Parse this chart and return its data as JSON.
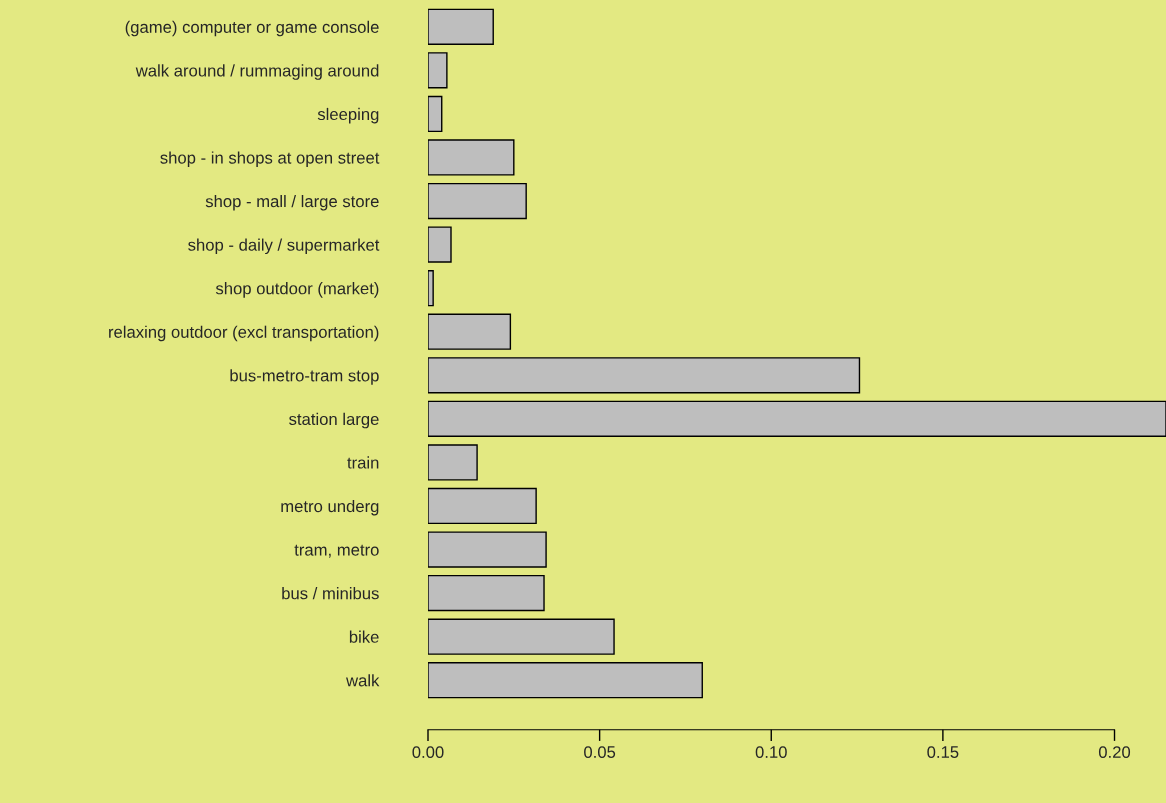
{
  "chart_data": {
    "type": "bar",
    "orientation": "horizontal",
    "categories": [
      "(game) computer or game console",
      "walk around / rummaging around",
      "sleeping",
      "shop - in shops at open street",
      "shop - mall / large store",
      "shop - daily / supermarket",
      "shop outdoor (market)",
      "relaxing outdoor (excl transportation)",
      "bus-metro-tram stop",
      "station large",
      "train",
      "metro underg",
      "tram, metro",
      "bus / minibus",
      "bike",
      "walk"
    ],
    "values": [
      0.019,
      0.0055,
      0.004,
      0.025,
      0.0286,
      0.0067,
      0.0015,
      0.024,
      0.1257,
      0.215,
      0.0143,
      0.0315,
      0.0344,
      0.0338,
      0.0542,
      0.0799
    ],
    "color": "#bebebe",
    "xlim": [
      0,
      0.215
    ],
    "xticks": [
      {
        "value": 0,
        "label": "0.00"
      },
      {
        "value": 0.05,
        "label": "0.05"
      },
      {
        "value": 0.1,
        "label": "0.10"
      },
      {
        "value": 0.15,
        "label": "0.15"
      },
      {
        "value": 0.2,
        "label": "0.20"
      }
    ],
    "grid": false,
    "legend": false
  }
}
